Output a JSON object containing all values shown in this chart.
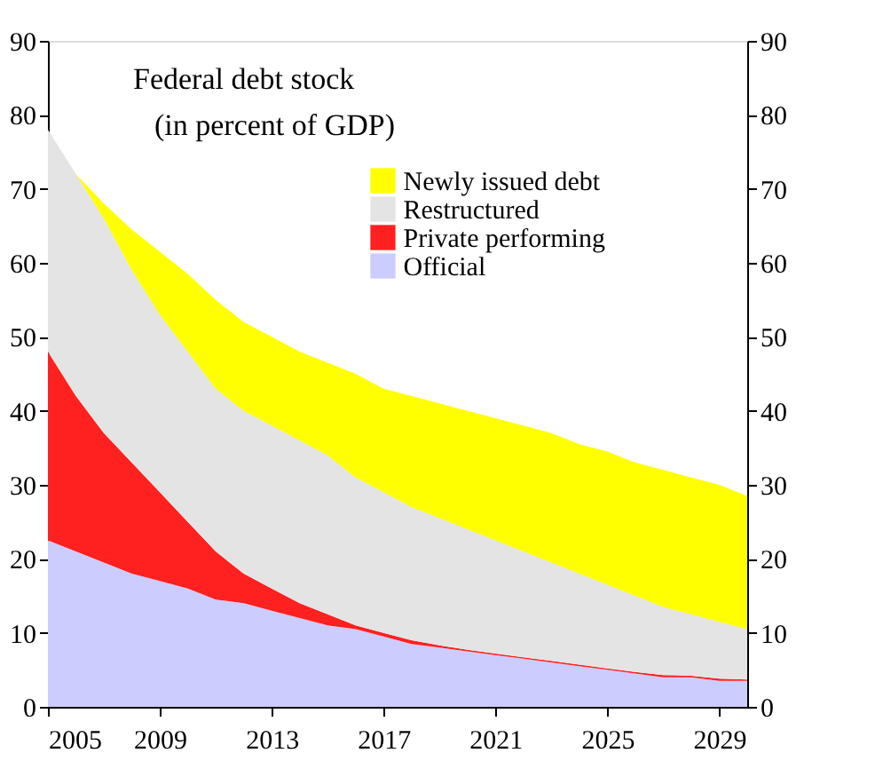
{
  "chart_data": {
    "type": "area",
    "stacked": true,
    "title": "Federal debt stock",
    "subtitle": "(in percent of GDP)",
    "x": [
      2005,
      2006,
      2007,
      2008,
      2009,
      2010,
      2011,
      2012,
      2013,
      2014,
      2015,
      2016,
      2017,
      2018,
      2019,
      2020,
      2021,
      2022,
      2023,
      2024,
      2025,
      2026,
      2027,
      2028,
      2029,
      2030
    ],
    "series": [
      {
        "name": "Official",
        "color": "#ccccff",
        "values": [
          22.5,
          21,
          19.5,
          18,
          17,
          16,
          14.5,
          14,
          13,
          12,
          11,
          10.5,
          9.5,
          8.5,
          8,
          7.5,
          7,
          6.5,
          6,
          5.5,
          5,
          4.5,
          4,
          4,
          3.5,
          3.5
        ]
      },
      {
        "name": "Private performing",
        "color": "#ff2020",
        "values": [
          25.5,
          21,
          17.5,
          15,
          12,
          9,
          6.5,
          4,
          3,
          2,
          1.5,
          0.5,
          0.5,
          0.5,
          0.3,
          0.2,
          0.2,
          0.2,
          0.2,
          0.2,
          0.2,
          0.2,
          0.3,
          0.2,
          0.3,
          0.2
        ]
      },
      {
        "name": "Restructured",
        "color": "#e4e4e4",
        "values": [
          30,
          30,
          29,
          26,
          24,
          23,
          22,
          22,
          22,
          22,
          21.5,
          20,
          19,
          18,
          17.2,
          16.3,
          15.3,
          14.3,
          13.3,
          12.3,
          11.3,
          10.3,
          9.2,
          8.3,
          7.7,
          6.8
        ]
      },
      {
        "name": "Newly issued debt",
        "color": "#ffff00",
        "values": [
          0,
          0,
          2,
          5.5,
          8.5,
          10.5,
          12,
          12,
          12,
          12,
          12.5,
          14,
          14,
          15,
          15.5,
          16,
          16.5,
          17,
          17.5,
          17.5,
          18,
          18,
          18.5,
          18.5,
          18.5,
          18
        ]
      }
    ],
    "xlim": [
      2005,
      2030
    ],
    "xticks": [
      2005,
      2009,
      2013,
      2017,
      2021,
      2025,
      2029
    ],
    "ylim": [
      0,
      90
    ],
    "yticks": [
      0,
      10,
      20,
      30,
      40,
      50,
      60,
      70,
      80,
      90
    ],
    "y2lim": [
      0,
      90
    ],
    "y2ticks": [
      0,
      10,
      20,
      30,
      40,
      50,
      60,
      70,
      80,
      90
    ],
    "grid": false,
    "legend": "top right"
  }
}
